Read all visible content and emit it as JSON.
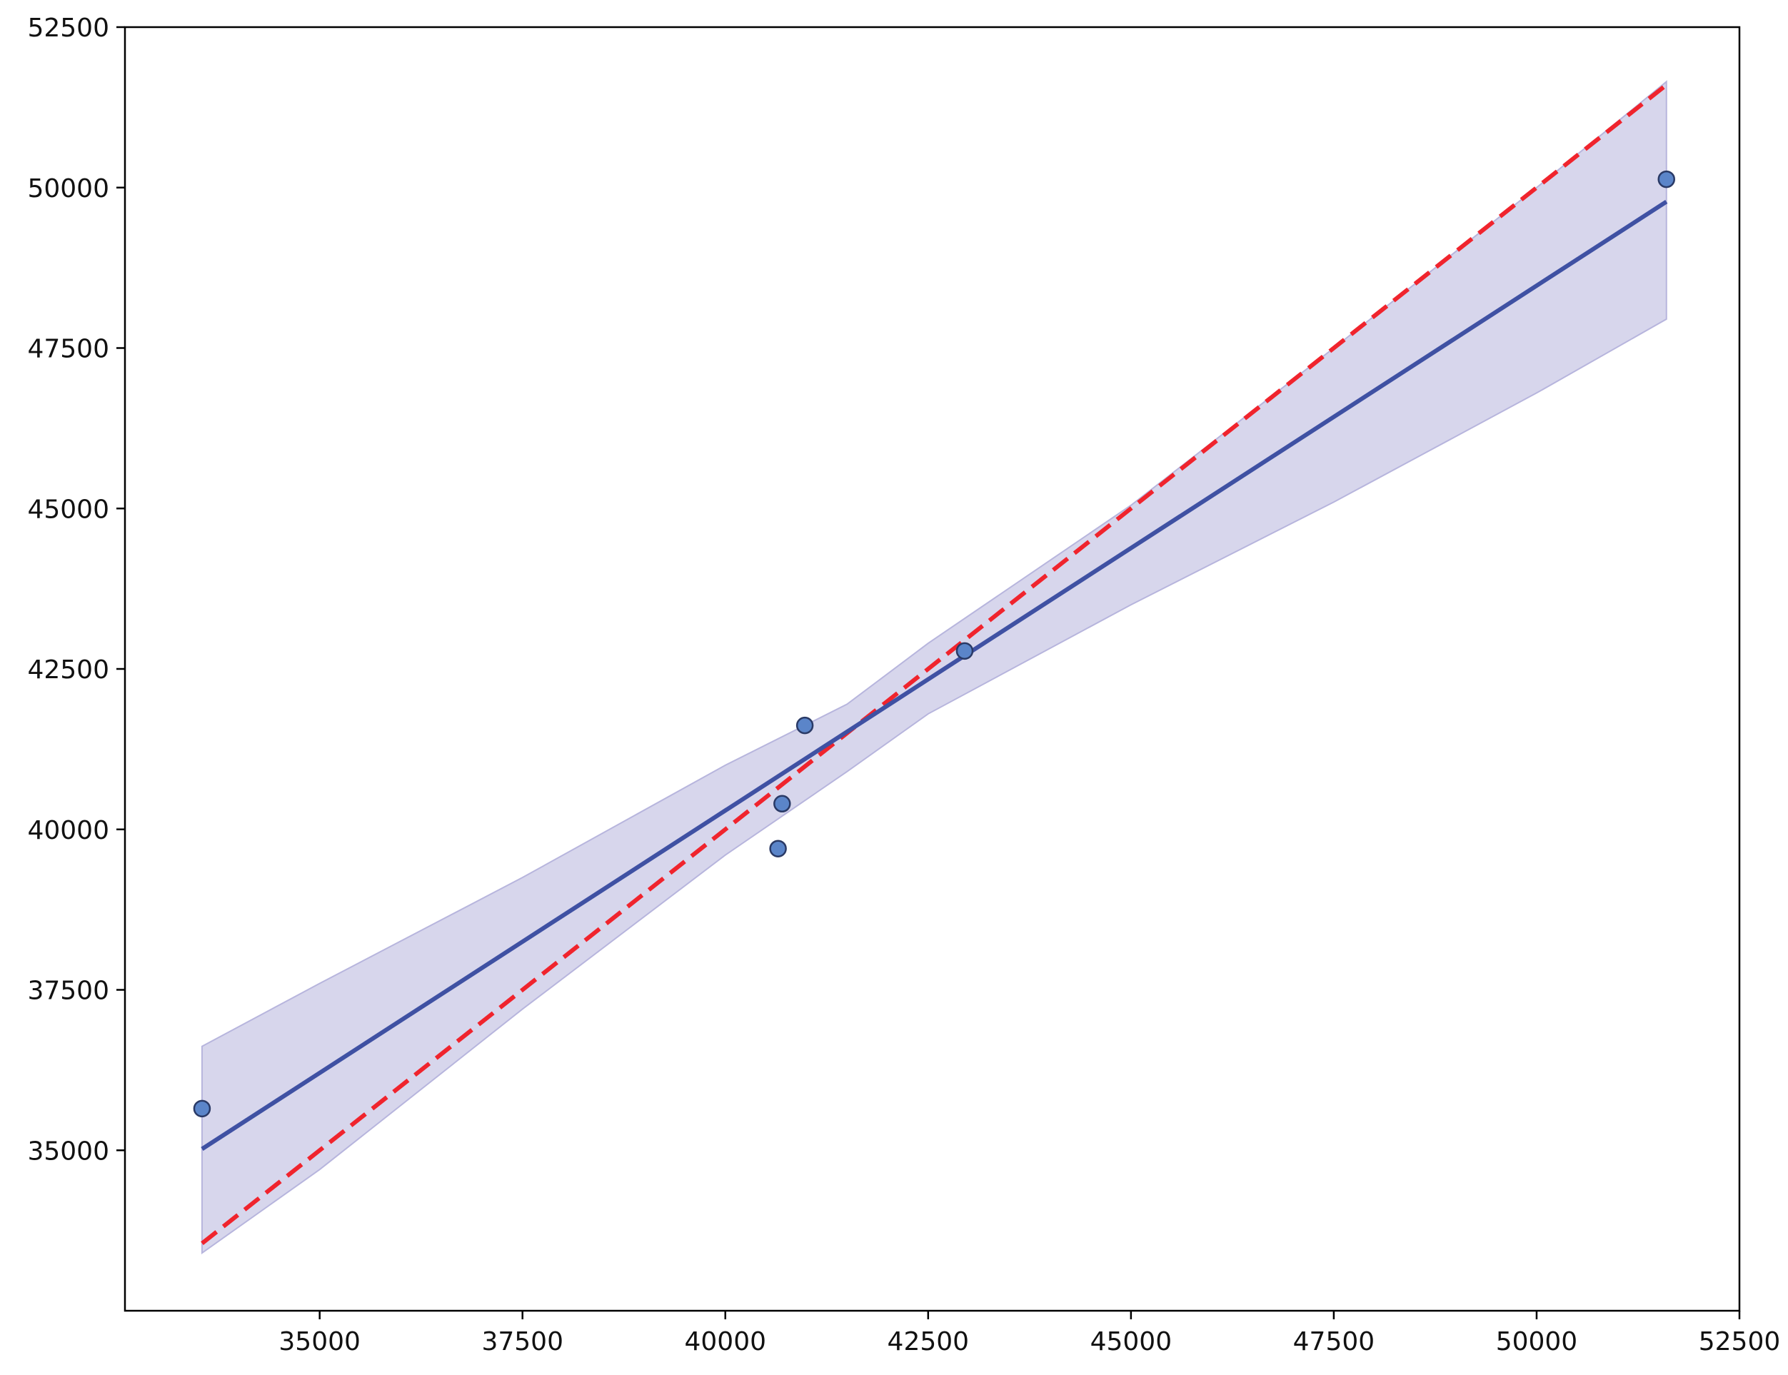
{
  "chart_data": {
    "type": "scatter",
    "title": "",
    "xlabel": "",
    "ylabel": "",
    "xlim": [
      32600,
      52500
    ],
    "ylim": [
      32500,
      52500
    ],
    "x_ticks": [
      35000,
      37500,
      40000,
      42500,
      45000,
      47500,
      50000,
      52500
    ],
    "y_ticks": [
      35000,
      37500,
      40000,
      42500,
      45000,
      47500,
      50000,
      52500
    ],
    "x_tick_labels": [
      "35000",
      "37500",
      "40000",
      "42500",
      "45000",
      "47500",
      "50000",
      "52500"
    ],
    "y_tick_labels": [
      "35000",
      "37500",
      "40000",
      "42500",
      "45000",
      "47500",
      "50000",
      "52500"
    ],
    "grid": false,
    "points": [
      {
        "x": 33550,
        "y": 35650
      },
      {
        "x": 40650,
        "y": 39700
      },
      {
        "x": 40700,
        "y": 40400
      },
      {
        "x": 40980,
        "y": 41620
      },
      {
        "x": 42950,
        "y": 42780
      },
      {
        "x": 51600,
        "y": 50130
      }
    ],
    "regression_line": {
      "x": [
        33550,
        51600
      ],
      "y": [
        35020,
        49780
      ]
    },
    "confidence_band": {
      "x": [
        33550,
        35000,
        37500,
        40000,
        41500,
        42500,
        45000,
        47500,
        50000,
        51600
      ],
      "lower": [
        33400,
        34700,
        37200,
        39600,
        40900,
        41800,
        43500,
        45100,
        46800,
        47950
      ],
      "upper": [
        36620,
        37600,
        39250,
        41000,
        41950,
        42900,
        45050,
        47500,
        50000,
        51650
      ]
    },
    "identity_line": {
      "x": [
        33550,
        51600
      ],
      "y": [
        33550,
        51600
      ]
    },
    "colors": {
      "points": "#5b85c9",
      "point_edge": "#2a3a66",
      "regression": "#3f51a3",
      "band": "#b7b5dd",
      "identity": "#f0242d"
    }
  }
}
